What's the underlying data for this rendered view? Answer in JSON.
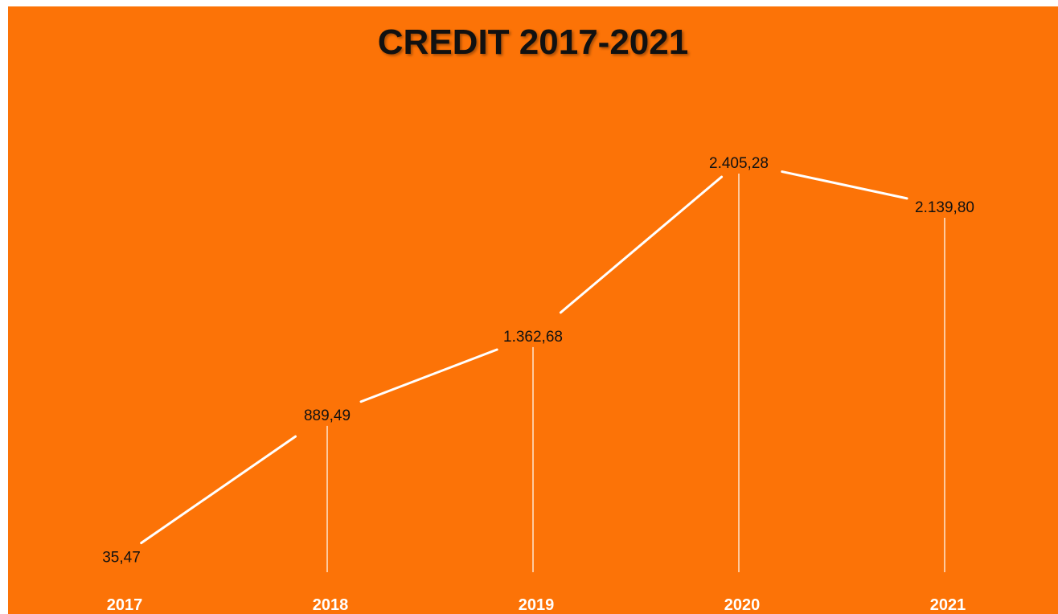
{
  "chart_data": {
    "type": "line",
    "title": "CREDIT 2017-2021",
    "categories": [
      "2017",
      "2018",
      "2019",
      "2020",
      "2021"
    ],
    "values": [
      35.47,
      889.49,
      1362.68,
      2405.28,
      2139.8
    ],
    "data_labels": [
      "35,47",
      "889,49",
      "1.362,68",
      "2.405,28",
      "2.139,80"
    ],
    "xlabel": "",
    "ylabel": "",
    "ylim": [
      0,
      2600
    ],
    "grid": false,
    "drop_lines": true,
    "legend": "none",
    "colors": {
      "background": "#fc7307",
      "line": "#ffffff",
      "label_text": "#111111",
      "tick_text": "#ffffff"
    }
  }
}
